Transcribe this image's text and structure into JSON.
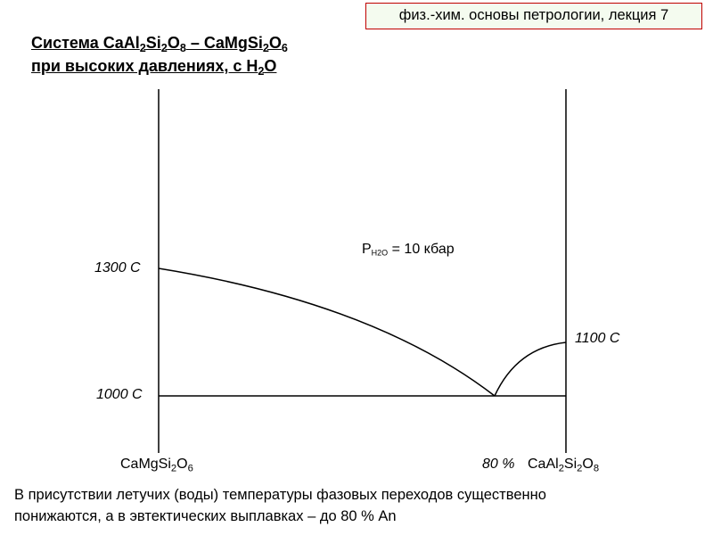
{
  "header": {
    "lecture": "физ.-хим. основы петрологии, лекция 7"
  },
  "title": {
    "line1": "Система CaAl2Si2O8 – CaMgSi2O6",
    "line2": "при высоких давлениях, с H2O"
  },
  "diagram": {
    "pressure": {
      "symbol": "P",
      "subscript": "H2O",
      "text": "= 10 кбар"
    },
    "left_temperature": "1300 C",
    "eutectic_temperature": "1000 C",
    "right_temperature": "1100 C",
    "left_component": "CaMgSi2O6",
    "right_component": "CaAl2Si2O8",
    "eutectic_composition": "80 %"
  },
  "caption": {
    "line1": "В присутствии летучих (воды) температуры фазовых переходов существенно",
    "line2": "понижаются, а в эвтектических выплавках – до 80 % An"
  }
}
